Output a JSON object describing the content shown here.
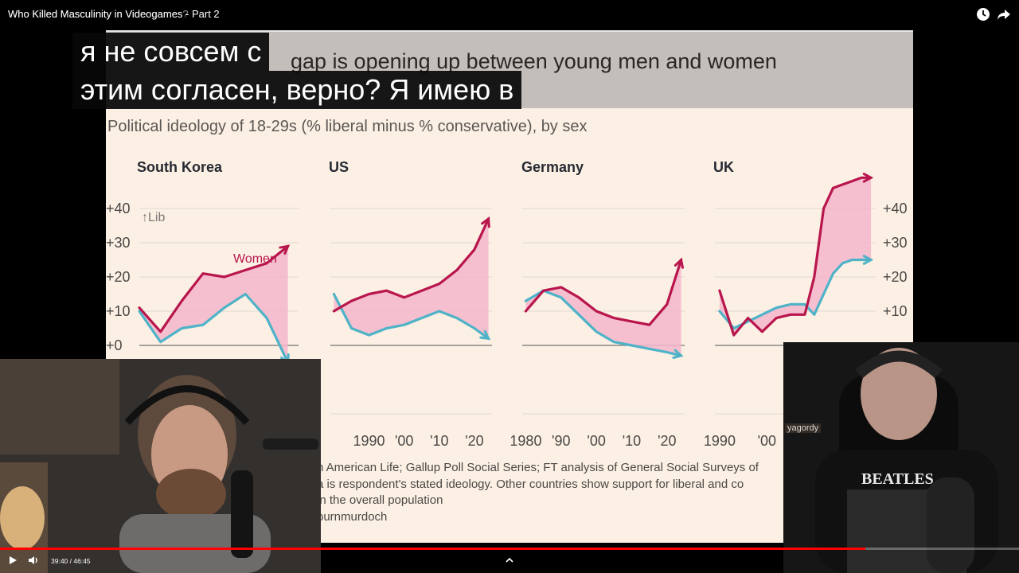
{
  "video": {
    "title": "Who Killed Masculinity in Videogames - Part 2",
    "title_overlay": "Who Killed Masculinity in Videogames?",
    "current_time": "39:40",
    "duration": "46:45",
    "progress": 0.849
  },
  "subtitles": {
    "line1": "я не совсем с",
    "line2": "этим согласен, верно?  Я имею в"
  },
  "slide": {
    "headline": "gap is opening up between young men and women",
    "subtitle": "Political ideology of 18-29s (% liberal minus % conservative), by sex",
    "source_lines": [
      "n American Life; Gallup Poll Social Series; FT analysis of General Social Surveys of",
      "a is respondent's stated ideology. Other countries show support for liberal and co",
      " in the overall population",
      "burnmurdoch"
    ]
  },
  "webcam_right_label": "yagordy",
  "colors": {
    "women": "#b8164d",
    "men": "#4fb3c8",
    "fill": "#f5b6cd",
    "accent": "#ff0000"
  },
  "icons": {
    "watch_later": "clock-icon",
    "share": "share-icon",
    "play": "play-icon",
    "volume": "volume-icon",
    "chevron": "chevron-up-icon"
  },
  "chart_data": [
    {
      "type": "line",
      "title": "South Korea",
      "y_tick_labels": [
        "+0",
        "+10",
        "+20",
        "+30",
        "+40"
      ],
      "annotation_lib": "↑Lib",
      "annotation_women": "Women",
      "x": [
        2008,
        2010,
        2012,
        2014,
        2016,
        2018,
        2020,
        2022
      ],
      "series": [
        {
          "name": "Women",
          "values": [
            11,
            4,
            13,
            21,
            20,
            22,
            24,
            29
          ]
        },
        {
          "name": "",
          "values": [
            10,
            1,
            5,
            6,
            11,
            15,
            8,
            -5
          ]
        }
      ],
      "ylim": [
        -3,
        45
      ]
    },
    {
      "type": "line",
      "title": "US",
      "x_tick_labels": [
        "1990",
        "'00",
        "'10",
        "'20"
      ],
      "x": [
        1980,
        1985,
        1990,
        1995,
        2000,
        2005,
        2010,
        2015,
        2020,
        2024
      ],
      "series": [
        {
          "name": "",
          "values": [
            10,
            13,
            15,
            16,
            14,
            16,
            18,
            22,
            28,
            37
          ]
        },
        {
          "name": "",
          "values": [
            15,
            5,
            3,
            5,
            6,
            8,
            10,
            8,
            5,
            2
          ]
        }
      ],
      "ylim": [
        -3,
        45
      ]
    },
    {
      "type": "line",
      "title": "Germany",
      "x_tick_labels": [
        "1980",
        "'90",
        "'00",
        "'10",
        "'20"
      ],
      "x": [
        1980,
        1985,
        1990,
        1995,
        2000,
        2005,
        2010,
        2015,
        2020,
        2024
      ],
      "series": [
        {
          "name": "",
          "values": [
            10,
            16,
            17,
            14,
            10,
            8,
            7,
            6,
            12,
            25
          ]
        },
        {
          "name": "",
          "values": [
            13,
            16,
            14,
            9,
            4,
            1,
            0,
            -1,
            -2,
            -3
          ]
        }
      ],
      "ylim": [
        -3,
        45
      ]
    },
    {
      "type": "line",
      "title": "UK",
      "y_tick_labels": [
        "+10",
        "+20",
        "+30",
        "+40"
      ],
      "x_tick_labels": [
        "1990",
        "'00"
      ],
      "x": [
        1990,
        1993,
        1996,
        1999,
        2002,
        2005,
        2008,
        2010,
        2012,
        2014,
        2016,
        2018,
        2020,
        2022
      ],
      "series": [
        {
          "name": "",
          "values": [
            16,
            3,
            8,
            4,
            8,
            9,
            9,
            20,
            40,
            46,
            47,
            48,
            49,
            49
          ]
        },
        {
          "name": "",
          "values": [
            10,
            5,
            7,
            9,
            11,
            12,
            12,
            9,
            15,
            21,
            24,
            25,
            25,
            25
          ]
        }
      ],
      "ylim": [
        -3,
        45
      ]
    }
  ]
}
